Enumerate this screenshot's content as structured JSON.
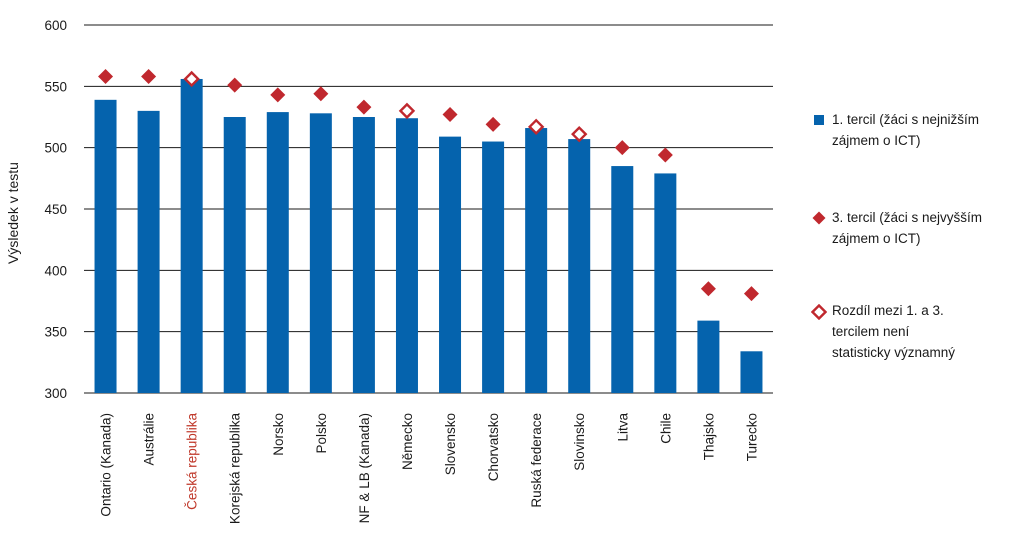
{
  "chart_data": {
    "type": "bar",
    "ylabel": "Výsledek v testu",
    "ylim": [
      300,
      600
    ],
    "yticks": [
      300,
      350,
      400,
      450,
      500,
      550,
      600
    ],
    "categories": [
      "Ontario (Kanada)",
      "Austrálie",
      "Česká republika",
      "Korejská republika",
      "Norsko",
      "Polsko",
      "NF & LB (Kanada)",
      "Německo",
      "Slovensko",
      "Chorvatsko",
      "Ruská federace",
      "Slovinsko",
      "Litva",
      "Chile",
      "Thajsko",
      "Turecko"
    ],
    "highlight_category": "Česká republika",
    "highlight_color": "#c0392b",
    "series": [
      {
        "name": "1. tercil (žáci s nejnižším zájmem o ICT)",
        "kind": "bar",
        "color": "#0563ad",
        "values": [
          539,
          530,
          556,
          525,
          529,
          528,
          525,
          524,
          509,
          505,
          516,
          507,
          485,
          479,
          359,
          334
        ]
      },
      {
        "name": "3. tercil (žáci s nejvyšším zájmem o ICT)",
        "kind": "marker",
        "color": "#c0282e",
        "values": [
          558,
          558,
          556,
          551,
          543,
          544,
          533,
          530,
          527,
          519,
          517,
          511,
          500,
          494,
          385,
          381
        ],
        "not_significant": [
          false,
          false,
          true,
          false,
          false,
          false,
          false,
          true,
          false,
          false,
          true,
          true,
          false,
          false,
          false,
          false
        ]
      }
    ]
  },
  "legend": {
    "items": [
      {
        "label_lines": [
          "1. tercil (žáci s nejnižším",
          "zájmem o ICT)"
        ],
        "marker": "square",
        "color": "#0563ad"
      },
      {
        "label_lines": [
          "3. tercil (žáci s nejvyšším",
          "zájmem o ICT)"
        ],
        "marker": "diamond-filled",
        "color": "#c0282e"
      },
      {
        "label_lines": [
          "Rozdíl mezi 1. a 3.",
          "tercilem není",
          "statisticky významný"
        ],
        "marker": "diamond-open",
        "color": "#c0282e"
      }
    ]
  }
}
